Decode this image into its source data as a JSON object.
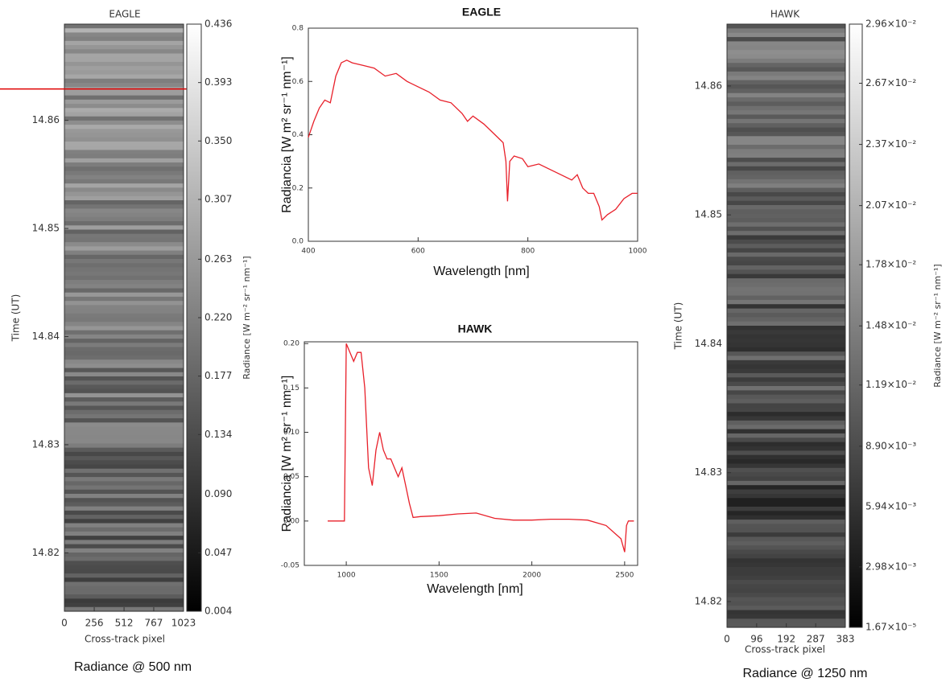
{
  "chart_data": [
    {
      "type": "image",
      "title": "EAGLE",
      "xlabel": "Cross-track pixel",
      "ylabel": "Time (UT)",
      "caption": "Radiance @ 500 nm",
      "xlim": [
        0,
        1023
      ],
      "xticks": [
        0,
        256,
        512,
        767,
        1023
      ],
      "ylim": [
        14.8146,
        14.8689
      ],
      "yticks": [
        14.82,
        14.83,
        14.84,
        14.85,
        14.86
      ],
      "highlight_time": 14.8629,
      "highlight_color": "#e00000",
      "colorbar": {
        "label": "Radiance [W m⁻² sr⁻¹ nm⁻¹]",
        "lim": [
          0.004,
          0.436
        ],
        "ticks": [
          0.004,
          0.047,
          {
            "value": 0.09,
            "label": "0.090"
          },
          0.134,
          0.177,
          {
            "value": 0.22,
            "label": "0.220"
          },
          0.263,
          0.307,
          {
            "value": 0.35,
            "label": "0.350"
          },
          0.393,
          0.436
        ]
      }
    },
    {
      "type": "image",
      "title": "HAWK",
      "xlabel": "Cross-track pixel",
      "ylabel": "Time (UT)",
      "caption": "Radiance @ 1250 nm",
      "xlim": [
        0,
        383
      ],
      "xticks": [
        0,
        96,
        192,
        287,
        383
      ],
      "ylim": [
        14.818,
        14.8648
      ],
      "yticks": [
        14.82,
        14.83,
        14.84,
        14.85,
        14.86
      ],
      "colorbar": {
        "label": "Radiance [W m⁻² sr⁻¹ nm⁻¹]",
        "lim": [
          1.67e-05,
          0.0296
        ],
        "ticks": [
          {
            "value": 1.67e-05,
            "label": "1.67×10⁻⁵"
          },
          {
            "value": 0.00298,
            "label": "2.98×10⁻³"
          },
          {
            "value": 0.00594,
            "label": "5.94×10⁻³"
          },
          {
            "value": 0.0089,
            "label": "8.90×10⁻³"
          },
          {
            "value": 0.0119,
            "label": "1.19×10⁻²"
          },
          {
            "value": 0.0148,
            "label": "1.48×10⁻²"
          },
          {
            "value": 0.0178,
            "label": "1.78×10⁻²"
          },
          {
            "value": 0.0207,
            "label": "2.07×10⁻²"
          },
          {
            "value": 0.0237,
            "label": "2.37×10⁻²"
          },
          {
            "value": 0.0267,
            "label": "2.67×10⁻²"
          },
          {
            "value": 0.0296,
            "label": "2.96×10⁻²"
          }
        ]
      }
    },
    {
      "type": "line",
      "title": "EAGLE",
      "xlabel": "Wavelength [nm]",
      "ylabel": "Radiancia [W m² sr⁻¹ nm⁻¹]",
      "color": "#e8202a",
      "xlim": [
        400,
        1000
      ],
      "xticks": [
        400,
        600,
        800,
        1000
      ],
      "ylim": [
        0,
        0.8
      ],
      "yticks": [
        {
          "value": 0,
          "label": "0.0"
        },
        0.2,
        0.4,
        0.6,
        0.8
      ],
      "x": [
        400,
        410,
        420,
        430,
        440,
        450,
        460,
        470,
        480,
        500,
        520,
        540,
        560,
        580,
        600,
        620,
        640,
        660,
        680,
        690,
        700,
        720,
        740,
        750,
        755,
        760,
        763,
        767,
        775,
        790,
        800,
        820,
        840,
        860,
        880,
        890,
        900,
        910,
        920,
        930,
        935,
        945,
        960,
        975,
        990,
        1000
      ],
      "values": [
        0.39,
        0.45,
        0.5,
        0.53,
        0.52,
        0.62,
        0.67,
        0.68,
        0.67,
        0.66,
        0.65,
        0.62,
        0.63,
        0.6,
        0.58,
        0.56,
        0.53,
        0.52,
        0.48,
        0.45,
        0.47,
        0.44,
        0.4,
        0.38,
        0.37,
        0.3,
        0.15,
        0.3,
        0.32,
        0.31,
        0.28,
        0.29,
        0.27,
        0.25,
        0.23,
        0.25,
        0.2,
        0.18,
        0.18,
        0.13,
        0.08,
        0.1,
        0.12,
        0.16,
        0.18,
        0.18
      ]
    },
    {
      "type": "line",
      "title": "HAWK",
      "xlabel": "Wavelength [nm]",
      "ylabel": "Radiancia [W m² sr⁻¹ nm⁻¹]",
      "color": "#e8202a",
      "xlim": [
        774,
        2570
      ],
      "xticks": [
        1000,
        1500,
        2000,
        2500
      ],
      "ylim": [
        -0.05,
        0.202
      ],
      "yticks": [
        -0.05,
        {
          "value": 0,
          "label": "0.00"
        },
        0.05,
        {
          "value": 0.1,
          "label": "0.10"
        },
        0.15,
        {
          "value": 0.2,
          "label": "0.20"
        }
      ],
      "x": [
        900,
        990,
        1000,
        1020,
        1040,
        1060,
        1080,
        1100,
        1120,
        1140,
        1160,
        1180,
        1200,
        1220,
        1240,
        1260,
        1280,
        1300,
        1320,
        1340,
        1360,
        1400,
        1500,
        1600,
        1700,
        1800,
        1900,
        2000,
        2100,
        2200,
        2300,
        2400,
        2480,
        2500,
        2510,
        2520,
        2550
      ],
      "values": [
        0,
        0,
        0.2,
        0.19,
        0.18,
        0.19,
        0.19,
        0.15,
        0.06,
        0.04,
        0.08,
        0.1,
        0.08,
        0.07,
        0.07,
        0.06,
        0.05,
        0.06,
        0.04,
        0.02,
        0.004,
        0.005,
        0.006,
        0.008,
        0.009,
        0.003,
        0.001,
        0.001,
        0.002,
        0.002,
        0.001,
        -0.005,
        -0.02,
        -0.035,
        -0.005,
        0,
        0
      ]
    }
  ]
}
